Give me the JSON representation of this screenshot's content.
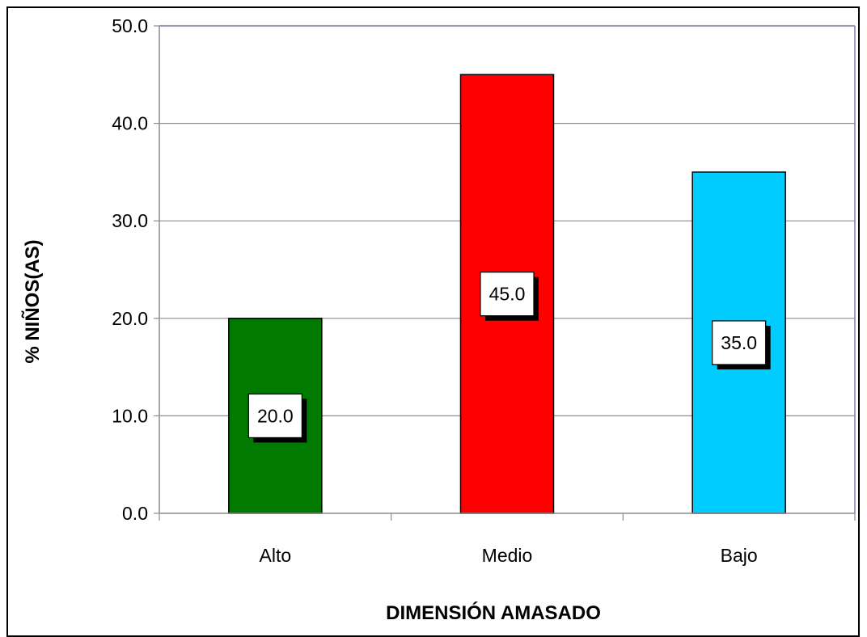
{
  "chart_data": {
    "type": "bar",
    "title": "",
    "xlabel": "DIMENSIÓN AMASADO",
    "ylabel": "% NIÑOS(AS)",
    "categories": [
      "Alto",
      "Medio",
      "Bajo"
    ],
    "values": [
      20.0,
      45.0,
      35.0
    ],
    "bar_colors": [
      "#007a00",
      "#ff0000",
      "#00ccff"
    ],
    "data_labels": [
      "20.0",
      "45.0",
      "35.0"
    ],
    "ylim": [
      0,
      50
    ],
    "yticks": [
      0,
      10,
      20,
      30,
      40,
      50
    ],
    "ytick_labels": [
      "0.0",
      "10.0",
      "20.0",
      "30.0",
      "40.0",
      "50.0"
    ],
    "grid": true,
    "legend": "none"
  }
}
